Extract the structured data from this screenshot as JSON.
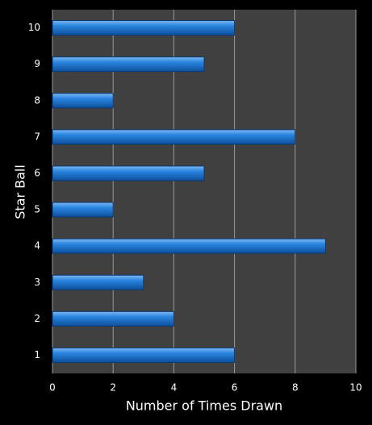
{
  "chart_data": {
    "type": "hbar",
    "x_label": "Number of Times Drawn",
    "y_label": "Star Ball",
    "categories": [
      "1",
      "2",
      "3",
      "4",
      "5",
      "6",
      "7",
      "8",
      "9",
      "10"
    ],
    "values": [
      6,
      4,
      3,
      9,
      2,
      5,
      8,
      2,
      5,
      6
    ],
    "color": "#1e78d8",
    "xlim": [
      0,
      10
    ],
    "xticks": [
      0,
      2,
      4,
      6,
      8,
      10
    ],
    "grid": true
  }
}
